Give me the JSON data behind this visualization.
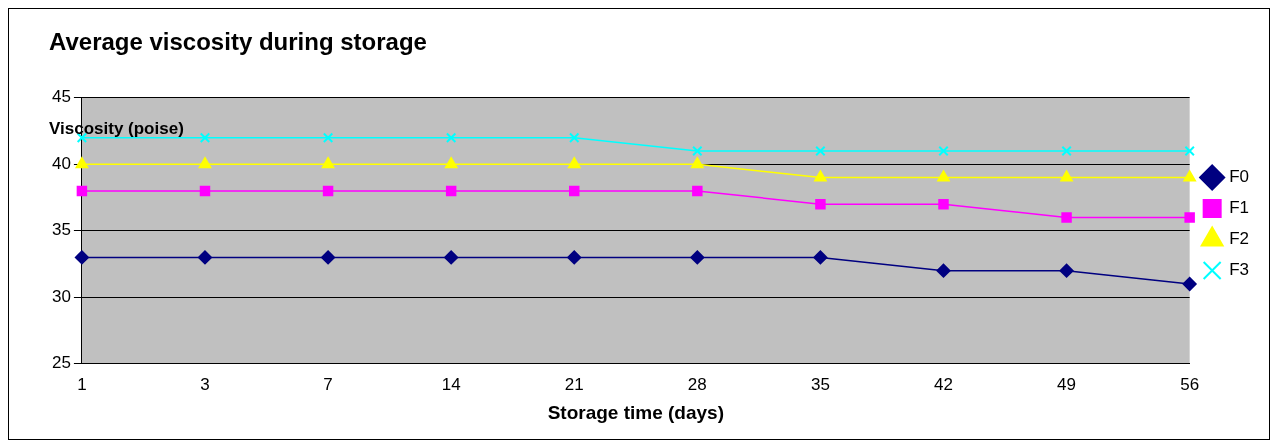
{
  "chart_data": {
    "type": "line",
    "title": "Average viscosity during storage",
    "xlabel": "Storage time (days)",
    "ylabel": "Viscosity (poise)",
    "categories": [
      "1",
      "3",
      "7",
      "14",
      "21",
      "28",
      "35",
      "42",
      "49",
      "56"
    ],
    "ylim": [
      25,
      45
    ],
    "yticks": [
      25,
      30,
      35,
      40,
      45
    ],
    "grid": "y",
    "legend": "right",
    "line_style": "solid",
    "series": [
      {
        "name": "F0",
        "color": "#000080",
        "marker": "diamond",
        "values": [
          33,
          33,
          33,
          33,
          33,
          33,
          33,
          32,
          32,
          31
        ]
      },
      {
        "name": "F1",
        "color": "#ff00ff",
        "marker": "square",
        "values": [
          38,
          38,
          38,
          38,
          38,
          38,
          37,
          37,
          36,
          36
        ]
      },
      {
        "name": "F2",
        "color": "#ffff00",
        "marker": "triangle",
        "values": [
          40,
          40,
          40,
          40,
          40,
          40,
          39,
          39,
          39,
          39
        ]
      },
      {
        "name": "F3",
        "color": "#00ffff",
        "marker": "cross",
        "values": [
          42,
          42,
          42,
          42,
          42,
          41,
          41,
          41,
          41,
          41
        ]
      }
    ]
  }
}
